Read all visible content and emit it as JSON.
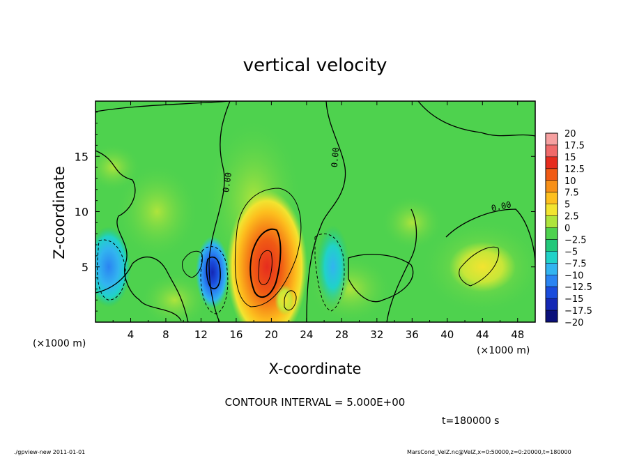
{
  "chart_data": {
    "type": "heatmap",
    "title": "vertical velocity",
    "xlabel": "X-coordinate",
    "ylabel": "Z-coordinate",
    "x_unit_label": "(×1000 m)",
    "y_unit_label": "(×1000 m)",
    "xlim": [
      0,
      50
    ],
    "ylim": [
      0,
      20
    ],
    "x_ticks": [
      "4",
      "8",
      "12",
      "16",
      "20",
      "24",
      "28",
      "32",
      "36",
      "40",
      "44",
      "48"
    ],
    "y_ticks": [
      "5",
      "10",
      "15"
    ],
    "colorbar": {
      "labels": [
        "20",
        "17.5",
        "15",
        "12.5",
        "10",
        "7.5",
        "5",
        "2.5",
        "0",
        "−2.5",
        "−5",
        "−7.5",
        "−10",
        "−12.5",
        "−15",
        "−17.5",
        "−20"
      ],
      "colors": [
        "#f6a0a0",
        "#f06a6a",
        "#e62c1e",
        "#f05a14",
        "#f79018",
        "#fdbf1e",
        "#f2e430",
        "#aee43c",
        "#4ed24e",
        "#22c87a",
        "#20d2c8",
        "#32b4f0",
        "#2a84f2",
        "#1a4cdc",
        "#1428b4",
        "#0a107a",
        "#5a1cae"
      ]
    },
    "contour_label": "0.00",
    "grid": false,
    "legend": "colorbar-right",
    "features": [
      {
        "name": "updraft",
        "x": 19.5,
        "z": 5,
        "peak": 15
      },
      {
        "name": "updraft",
        "x": 44,
        "z": 5,
        "peak": 5
      },
      {
        "name": "updraft",
        "x": 21.5,
        "z": 2,
        "peak": 5
      },
      {
        "name": "downdraft",
        "x": 13.3,
        "z": 4.5,
        "peak": -12
      },
      {
        "name": "downdraft",
        "x": 1.5,
        "z": 5,
        "peak": -7
      },
      {
        "name": "downdraft",
        "x": 27,
        "z": 5,
        "peak": -5
      }
    ]
  },
  "footer": {
    "contour_interval": "CONTOUR INTERVAL = 5.000E+00",
    "time": "t=180000 s",
    "program": "./gpview-new   2011-01-01",
    "source": "MarsCond_VelZ.nc@VelZ,x=0:50000,z=0:20000,t=180000"
  }
}
